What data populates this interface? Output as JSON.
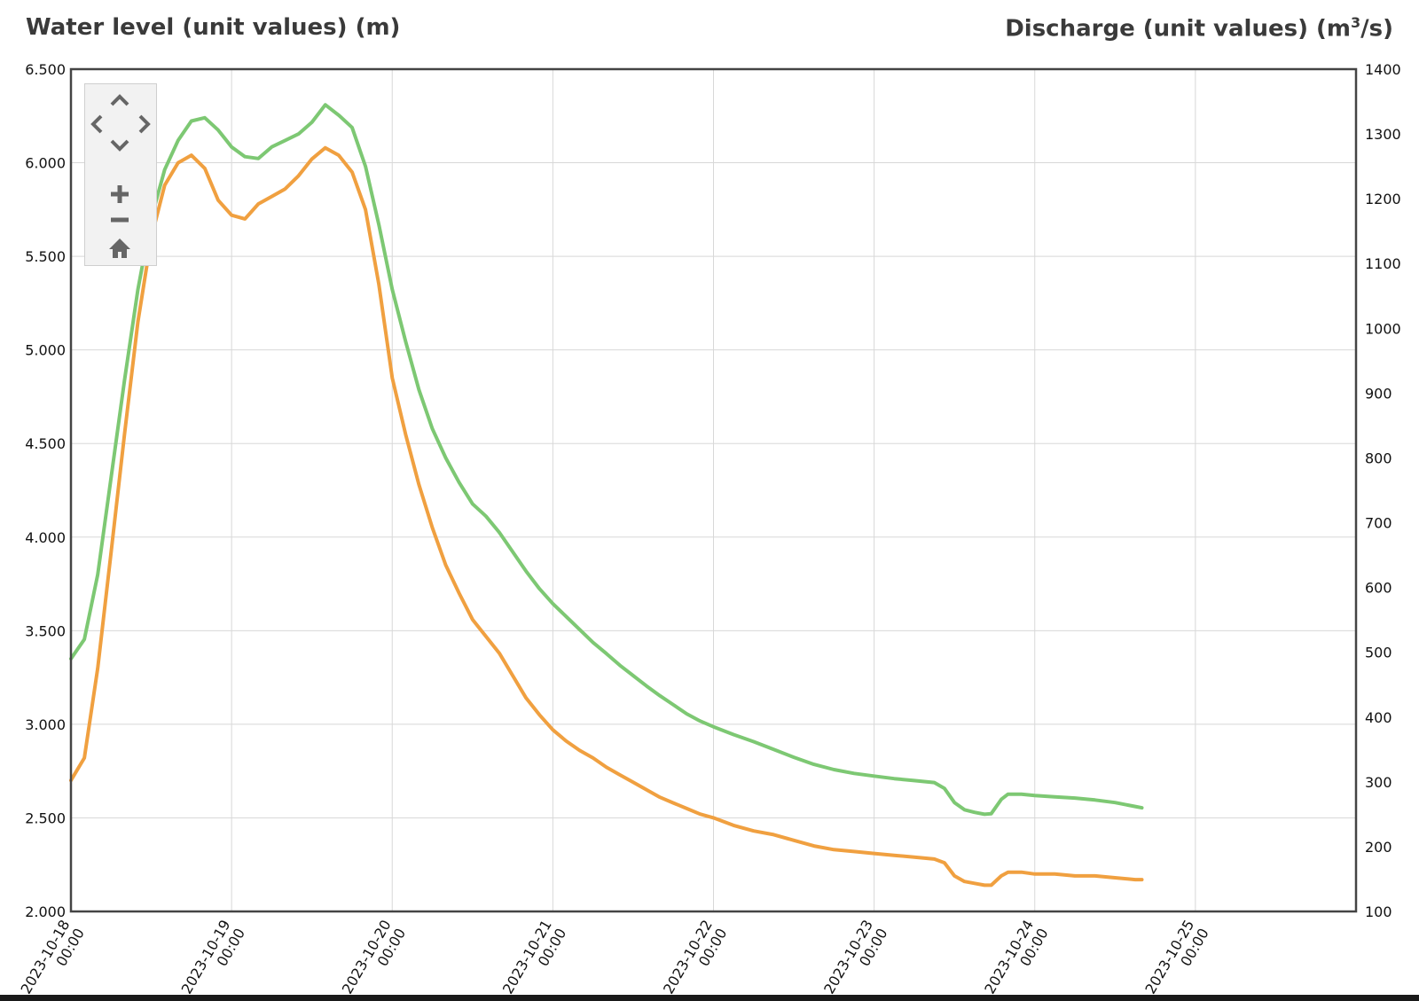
{
  "chart_data": {
    "type": "line",
    "ylabel_left": "Water level (unit values) (m)",
    "ylabel_right_prefix": "Discharge (unit values) (m",
    "ylabel_right_sup": "3",
    "ylabel_right_suffix": "/s)",
    "ylim_left": [
      2.0,
      6.5
    ],
    "ylim_right": [
      100,
      1400
    ],
    "yticks_left": [
      "2.000",
      "2.500",
      "3.000",
      "3.500",
      "4.000",
      "4.500",
      "5.000",
      "5.500",
      "6.000",
      "6.500"
    ],
    "yticks_right": [
      "100",
      "200",
      "300",
      "400",
      "500",
      "600",
      "700",
      "800",
      "900",
      "1000",
      "1100",
      "1200",
      "1300",
      "1400"
    ],
    "xlim": [
      "2023-10-18 00:00",
      "2023-10-26 00:00"
    ],
    "xticks": [
      {
        "date": "2023-10-18",
        "time": "00:00"
      },
      {
        "date": "2023-10-19",
        "time": "00:00"
      },
      {
        "date": "2023-10-20",
        "time": "00:00"
      },
      {
        "date": "2023-10-21",
        "time": "00:00"
      },
      {
        "date": "2023-10-22",
        "time": "00:00"
      },
      {
        "date": "2023-10-23",
        "time": "00:00"
      },
      {
        "date": "2023-10-24",
        "time": "00:00"
      },
      {
        "date": "2023-10-25",
        "time": "00:00"
      }
    ],
    "grid": true,
    "legend": "none",
    "series": [
      {
        "axis": "right",
        "color": "#7dc873",
        "points": [
          [
            "2023-10-18 00:00",
            490
          ],
          [
            "2023-10-18 02:00",
            520
          ],
          [
            "2023-10-18 04:00",
            620
          ],
          [
            "2023-10-18 06:00",
            770
          ],
          [
            "2023-10-18 08:00",
            920
          ],
          [
            "2023-10-18 10:00",
            1060
          ],
          [
            "2023-10-18 12:00",
            1170
          ],
          [
            "2023-10-18 14:00",
            1245
          ],
          [
            "2023-10-18 16:00",
            1290
          ],
          [
            "2023-10-18 18:00",
            1320
          ],
          [
            "2023-10-18 20:00",
            1325
          ],
          [
            "2023-10-18 22:00",
            1306
          ],
          [
            "2023-10-19 00:00",
            1280
          ],
          [
            "2023-10-19 02:00",
            1265
          ],
          [
            "2023-10-19 04:00",
            1262
          ],
          [
            "2023-10-19 06:00",
            1280
          ],
          [
            "2023-10-19 08:00",
            1290
          ],
          [
            "2023-10-19 10:00",
            1300
          ],
          [
            "2023-10-19 12:00",
            1318
          ],
          [
            "2023-10-19 14:00",
            1345
          ],
          [
            "2023-10-19 16:00",
            1329
          ],
          [
            "2023-10-19 18:00",
            1310
          ],
          [
            "2023-10-19 20:00",
            1250
          ],
          [
            "2023-10-19 22:00",
            1160
          ],
          [
            "2023-10-20 00:00",
            1060
          ],
          [
            "2023-10-20 02:00",
            980
          ],
          [
            "2023-10-20 04:00",
            905
          ],
          [
            "2023-10-20 06:00",
            845
          ],
          [
            "2023-10-20 08:00",
            800
          ],
          [
            "2023-10-20 10:00",
            762
          ],
          [
            "2023-10-20 12:00",
            729
          ],
          [
            "2023-10-20 14:00",
            710
          ],
          [
            "2023-10-20 16:00",
            685
          ],
          [
            "2023-10-20 18:00",
            655
          ],
          [
            "2023-10-20 20:00",
            625
          ],
          [
            "2023-10-20 22:00",
            598
          ],
          [
            "2023-10-21 00:00",
            575
          ],
          [
            "2023-10-21 02:00",
            555
          ],
          [
            "2023-10-21 04:00",
            535
          ],
          [
            "2023-10-21 06:00",
            515
          ],
          [
            "2023-10-21 08:00",
            498
          ],
          [
            "2023-10-21 10:00",
            480
          ],
          [
            "2023-10-21 12:00",
            464
          ],
          [
            "2023-10-21 14:00",
            448
          ],
          [
            "2023-10-21 16:00",
            433
          ],
          [
            "2023-10-21 18:00",
            419
          ],
          [
            "2023-10-21 20:00",
            405
          ],
          [
            "2023-10-21 22:00",
            394
          ],
          [
            "2023-10-22 00:00",
            385
          ],
          [
            "2023-10-22 03:00",
            373
          ],
          [
            "2023-10-22 06:00",
            362
          ],
          [
            "2023-10-22 09:00",
            350
          ],
          [
            "2023-10-22 12:00",
            338
          ],
          [
            "2023-10-22 15:00",
            327
          ],
          [
            "2023-10-22 18:00",
            319
          ],
          [
            "2023-10-22 21:00",
            313
          ],
          [
            "2023-10-23 00:00",
            309
          ],
          [
            "2023-10-23 03:00",
            305
          ],
          [
            "2023-10-23 06:00",
            302
          ],
          [
            "2023-10-23 09:00",
            299
          ],
          [
            "2023-10-23 10:30",
            290
          ],
          [
            "2023-10-23 12:00",
            268
          ],
          [
            "2023-10-23 13:30",
            257
          ],
          [
            "2023-10-23 15:00",
            253
          ],
          [
            "2023-10-23 16:30",
            250
          ],
          [
            "2023-10-23 17:30",
            251
          ],
          [
            "2023-10-23 19:00",
            273
          ],
          [
            "2023-10-23 20:00",
            281
          ],
          [
            "2023-10-23 22:00",
            281
          ],
          [
            "2023-10-24 00:00",
            279
          ],
          [
            "2023-10-24 03:00",
            277
          ],
          [
            "2023-10-24 06:00",
            275
          ],
          [
            "2023-10-24 09:00",
            272
          ],
          [
            "2023-10-24 12:00",
            268
          ],
          [
            "2023-10-24 15:00",
            262
          ],
          [
            "2023-10-24 16:00",
            260
          ]
        ]
      },
      {
        "axis": "left",
        "color": "#f0a040",
        "points": [
          [
            "2023-10-18 00:00",
            2.7
          ],
          [
            "2023-10-18 02:00",
            2.82
          ],
          [
            "2023-10-18 04:00",
            3.3
          ],
          [
            "2023-10-18 06:00",
            3.92
          ],
          [
            "2023-10-18 08:00",
            4.55
          ],
          [
            "2023-10-18 10:00",
            5.15
          ],
          [
            "2023-10-18 12:00",
            5.6
          ],
          [
            "2023-10-18 14:00",
            5.88
          ],
          [
            "2023-10-18 16:00",
            6.0
          ],
          [
            "2023-10-18 18:00",
            6.04
          ],
          [
            "2023-10-18 20:00",
            5.97
          ],
          [
            "2023-10-18 22:00",
            5.8
          ],
          [
            "2023-10-19 00:00",
            5.72
          ],
          [
            "2023-10-19 02:00",
            5.7
          ],
          [
            "2023-10-19 04:00",
            5.78
          ],
          [
            "2023-10-19 06:00",
            5.82
          ],
          [
            "2023-10-19 08:00",
            5.86
          ],
          [
            "2023-10-19 10:00",
            5.93
          ],
          [
            "2023-10-19 12:00",
            6.02
          ],
          [
            "2023-10-19 14:00",
            6.08
          ],
          [
            "2023-10-19 16:00",
            6.04
          ],
          [
            "2023-10-19 18:00",
            5.95
          ],
          [
            "2023-10-19 20:00",
            5.75
          ],
          [
            "2023-10-19 22:00",
            5.35
          ],
          [
            "2023-10-20 00:00",
            4.85
          ],
          [
            "2023-10-20 02:00",
            4.55
          ],
          [
            "2023-10-20 04:00",
            4.28
          ],
          [
            "2023-10-20 06:00",
            4.05
          ],
          [
            "2023-10-20 08:00",
            3.85
          ],
          [
            "2023-10-20 10:00",
            3.7
          ],
          [
            "2023-10-20 12:00",
            3.56
          ],
          [
            "2023-10-20 14:00",
            3.47
          ],
          [
            "2023-10-20 16:00",
            3.38
          ],
          [
            "2023-10-20 18:00",
            3.26
          ],
          [
            "2023-10-20 20:00",
            3.14
          ],
          [
            "2023-10-20 22:00",
            3.05
          ],
          [
            "2023-10-21 00:00",
            2.97
          ],
          [
            "2023-10-21 02:00",
            2.91
          ],
          [
            "2023-10-21 04:00",
            2.86
          ],
          [
            "2023-10-21 06:00",
            2.82
          ],
          [
            "2023-10-21 08:00",
            2.77
          ],
          [
            "2023-10-21 10:00",
            2.73
          ],
          [
            "2023-10-21 12:00",
            2.69
          ],
          [
            "2023-10-21 14:00",
            2.65
          ],
          [
            "2023-10-21 16:00",
            2.61
          ],
          [
            "2023-10-21 18:00",
            2.58
          ],
          [
            "2023-10-21 20:00",
            2.55
          ],
          [
            "2023-10-21 22:00",
            2.52
          ],
          [
            "2023-10-22 00:00",
            2.5
          ],
          [
            "2023-10-22 03:00",
            2.46
          ],
          [
            "2023-10-22 06:00",
            2.43
          ],
          [
            "2023-10-22 09:00",
            2.41
          ],
          [
            "2023-10-22 12:00",
            2.38
          ],
          [
            "2023-10-22 15:00",
            2.35
          ],
          [
            "2023-10-22 18:00",
            2.33
          ],
          [
            "2023-10-22 21:00",
            2.32
          ],
          [
            "2023-10-23 00:00",
            2.31
          ],
          [
            "2023-10-23 03:00",
            2.3
          ],
          [
            "2023-10-23 06:00",
            2.29
          ],
          [
            "2023-10-23 09:00",
            2.28
          ],
          [
            "2023-10-23 10:30",
            2.26
          ],
          [
            "2023-10-23 12:00",
            2.19
          ],
          [
            "2023-10-23 13:30",
            2.16
          ],
          [
            "2023-10-23 15:00",
            2.15
          ],
          [
            "2023-10-23 16:30",
            2.14
          ],
          [
            "2023-10-23 17:30",
            2.14
          ],
          [
            "2023-10-23 19:00",
            2.19
          ],
          [
            "2023-10-23 20:00",
            2.21
          ],
          [
            "2023-10-23 22:00",
            2.21
          ],
          [
            "2023-10-24 00:00",
            2.2
          ],
          [
            "2023-10-24 03:00",
            2.2
          ],
          [
            "2023-10-24 06:00",
            2.19
          ],
          [
            "2023-10-24 09:00",
            2.19
          ],
          [
            "2023-10-24 12:00",
            2.18
          ],
          [
            "2023-10-24 15:00",
            2.17
          ],
          [
            "2023-10-24 16:00",
            2.17
          ]
        ]
      }
    ]
  },
  "nav": {
    "icons": [
      "chevron-up-icon",
      "chevron-left-icon",
      "chevron-right-icon",
      "chevron-down-icon",
      "plus-icon",
      "minus-icon",
      "home-icon"
    ],
    "icon_color": "#666666",
    "panel_bg": "#f2f2f2"
  },
  "colors": {
    "axis": "#444444",
    "grid": "#d8d8d8"
  }
}
